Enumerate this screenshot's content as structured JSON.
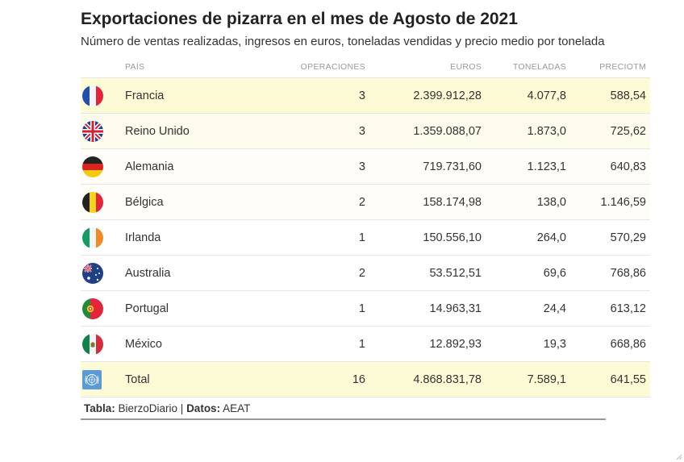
{
  "header": {
    "title": "Exportaciones de pizarra en el mes de Agosto de 2021",
    "subtitle": "Número de ventas realizadas, ingresos en euros, toneladas vendidas y precio medio por tonelada"
  },
  "chart_data": {
    "type": "table",
    "title": "Exportaciones de pizarra en el mes de Agosto de 2021",
    "subtitle": "Número de ventas realizadas, ingresos en euros, toneladas vendidas y precio medio por tonelada",
    "columns": [
      "",
      "País",
      "Operaciones",
      "Euros",
      "Toneladas",
      "PrecioTM"
    ],
    "rows": [
      {
        "flag": "flag-france-icon",
        "pais": "Francia",
        "operaciones": "3",
        "euros": "2.399.912,28",
        "toneladas": "4.077,8",
        "precio": "588,54",
        "highlight": "#fdfbd6"
      },
      {
        "flag": "flag-united-kingdom-icon",
        "pais": "Reino Unido",
        "operaciones": "3",
        "euros": "1.359.088,07",
        "toneladas": "1.873,0",
        "precio": "725,62",
        "highlight": "#fdfbeb"
      },
      {
        "flag": "flag-germany-icon",
        "pais": "Alemania",
        "operaciones": "3",
        "euros": "719.731,60",
        "toneladas": "1.123,1",
        "precio": "640,83",
        "highlight": "#fefdf7"
      },
      {
        "flag": "flag-belgium-icon",
        "pais": "Bélgica",
        "operaciones": "2",
        "euros": "158.174,98",
        "toneladas": "138,0",
        "precio": "1.146,59",
        "highlight": "#fefdf8"
      },
      {
        "flag": "flag-ireland-icon",
        "pais": "Irlanda",
        "operaciones": "1",
        "euros": "150.556,10",
        "toneladas": "264,0",
        "precio": "570,29",
        "highlight": "#ffffff"
      },
      {
        "flag": "flag-australia-icon",
        "pais": "Australia",
        "operaciones": "2",
        "euros": "53.512,51",
        "toneladas": "69,6",
        "precio": "768,86",
        "highlight": "#ffffff"
      },
      {
        "flag": "flag-portugal-icon",
        "pais": "Portugal",
        "operaciones": "1",
        "euros": "14.963,31",
        "toneladas": "24,4",
        "precio": "613,12",
        "highlight": "#ffffff"
      },
      {
        "flag": "flag-mexico-icon",
        "pais": "México",
        "operaciones": "1",
        "euros": "12.892,93",
        "toneladas": "19,3",
        "precio": "668,86",
        "highlight": "#ffffff"
      },
      {
        "flag": "flag-united-nations-icon",
        "pais": "Total",
        "operaciones": "16",
        "euros": "4.868.831,78",
        "toneladas": "7.589,1",
        "precio": "641,55",
        "highlight": "#fdfbd6"
      }
    ]
  },
  "footer": {
    "tabla_label": "Tabla:",
    "tabla_value": " BierzoDiario | ",
    "datos_label": "Datos:",
    "datos_value": " AEAT"
  }
}
